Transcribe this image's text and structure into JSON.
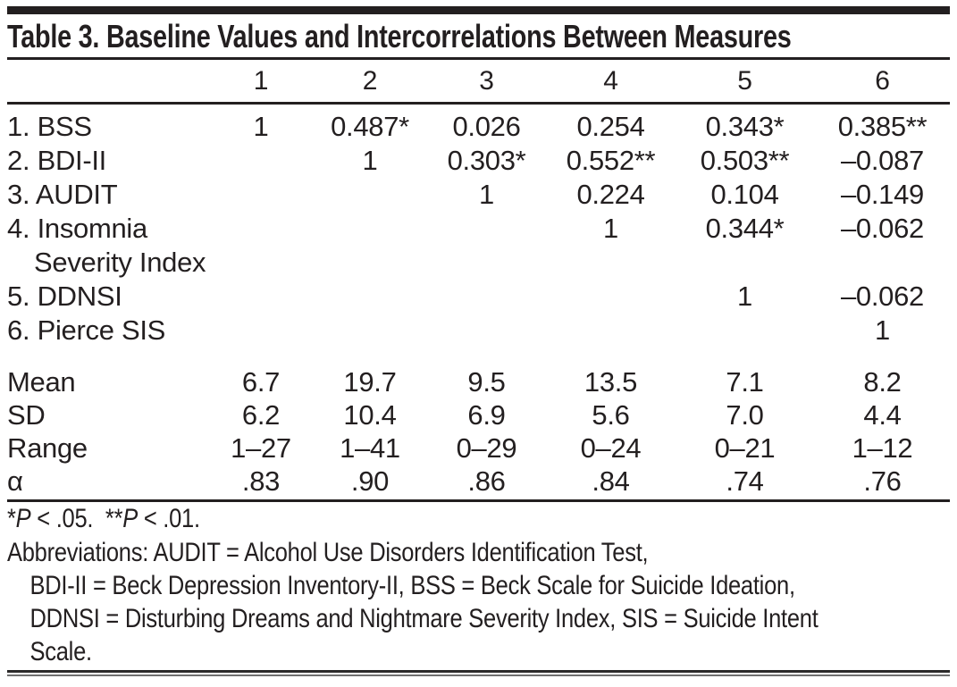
{
  "title": "Table 3. Baseline Values and Intercorrelations Between Measures",
  "table": {
    "column_headers": [
      "1",
      "2",
      "3",
      "4",
      "5",
      "6"
    ],
    "rows": [
      {
        "label": "1. BSS",
        "values": [
          "1",
          "0.487*",
          "0.026",
          "0.254",
          "0.343*",
          "0.385**"
        ]
      },
      {
        "label": "2. BDI-II",
        "values": [
          "",
          "1",
          "0.303*",
          "0.552**",
          "0.503**",
          "–0.087"
        ]
      },
      {
        "label": "3. AUDIT",
        "values": [
          "",
          "",
          "1",
          "0.224",
          "0.104",
          "–0.149"
        ]
      },
      {
        "label": "4. Insomnia",
        "label_line2": "Severity Index",
        "values": [
          "",
          "",
          "",
          "1",
          "0.344*",
          "–0.062"
        ]
      },
      {
        "label": "5. DDNSI",
        "values": [
          "",
          "",
          "",
          "",
          "1",
          "–0.062"
        ]
      },
      {
        "label": "6. Pierce SIS",
        "values": [
          "",
          "",
          "",
          "",
          "",
          "1"
        ]
      }
    ],
    "summary_rows": [
      {
        "label": "Mean",
        "values": [
          "6.7",
          "19.7",
          "9.5",
          "13.5",
          "7.1",
          "8.2"
        ]
      },
      {
        "label": "SD",
        "values": [
          "6.2",
          "10.4",
          "6.9",
          "5.6",
          "7.0",
          "4.4"
        ]
      },
      {
        "label": "Range",
        "values": [
          "1–27",
          "1–41",
          "0–29",
          "0–24",
          "0–21",
          "1–12"
        ]
      },
      {
        "label": "α",
        "values": [
          ".83",
          ".90",
          ".86",
          ".84",
          ".74",
          ".76"
        ]
      }
    ]
  },
  "footnotes": {
    "significance": {
      "star1": "*",
      "p1": "P",
      "rest1": " < .05.  ",
      "star2": "**",
      "p2": "P",
      "rest2": " < .01."
    },
    "abbreviations_lines": [
      "Abbreviations: AUDIT = Alcohol Use Disorders Identification Test,",
      "BDI-II = Beck Depression Inventory-II, BSS = Beck Scale for Suicide Ideation,",
      "DDNSI = Disturbing Dreams and Nightmare Severity Index, SIS = Suicide Intent",
      "Scale."
    ]
  },
  "colors": {
    "ink": "#231f20",
    "background": "#ffffff"
  }
}
